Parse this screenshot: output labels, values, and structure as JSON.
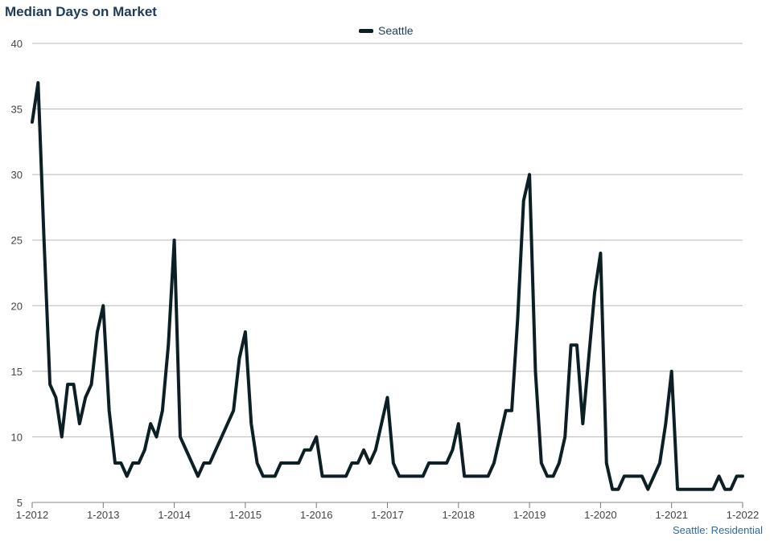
{
  "chart_data": {
    "type": "line",
    "title": "Median Days on Market",
    "source_label": "Seattle: Residential",
    "xlabel": "",
    "ylabel": "",
    "ylim": [
      5,
      40
    ],
    "yticks": [
      5,
      10,
      15,
      20,
      25,
      30,
      35,
      40
    ],
    "xticks": [
      "1-2012",
      "1-2013",
      "1-2014",
      "1-2015",
      "1-2016",
      "1-2017",
      "1-2018",
      "1-2019",
      "1-2020",
      "1-2021",
      "1-2022"
    ],
    "grid": true,
    "legend_position": "top-center",
    "line_color": "#0c1f24",
    "series": [
      {
        "name": "Seattle",
        "x_start": "1-2012",
        "frequency": "monthly",
        "values": [
          34,
          37,
          25,
          14,
          13,
          10,
          14,
          14,
          11,
          13,
          14,
          18,
          20,
          12,
          8,
          8,
          7,
          8,
          8,
          9,
          11,
          10,
          12,
          17,
          25,
          10,
          9,
          8,
          7,
          8,
          8,
          9,
          10,
          11,
          12,
          16,
          18,
          11,
          8,
          7,
          7,
          7,
          8,
          8,
          8,
          8,
          9,
          9,
          10,
          7,
          7,
          7,
          7,
          7,
          8,
          8,
          9,
          8,
          9,
          11,
          13,
          8,
          7,
          7,
          7,
          7,
          7,
          8,
          8,
          8,
          8,
          9,
          11,
          7,
          7,
          7,
          7,
          7,
          8,
          10,
          12,
          12,
          19,
          28,
          30,
          15,
          8,
          7,
          7,
          8,
          10,
          17,
          17,
          11,
          16,
          21,
          24,
          8,
          6,
          6,
          7,
          7,
          7,
          7,
          6,
          7,
          8,
          11,
          15,
          6,
          6,
          6,
          6,
          6,
          6,
          6,
          7,
          6,
          6,
          7,
          7
        ]
      }
    ]
  }
}
